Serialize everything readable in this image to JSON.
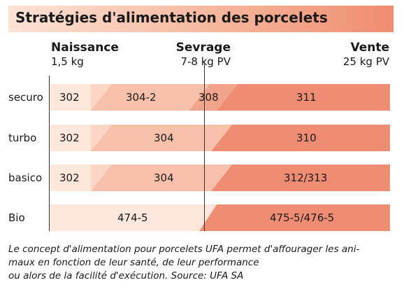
{
  "title": "Stratégies d'alimentation des porcelets",
  "milestones": {
    "birth": {
      "name": "Naissance",
      "weight": "1,5 kg"
    },
    "weaning": {
      "name": "Sevrage",
      "weight": "7-8 kg PV"
    },
    "sale": {
      "name": "Vente",
      "weight": "25 kg PV"
    }
  },
  "rows": [
    {
      "label": "securo",
      "feeds": [
        "302",
        "304-2",
        "308",
        "311"
      ]
    },
    {
      "label": "turbo",
      "feeds": [
        "302",
        "304",
        "310"
      ]
    },
    {
      "label": "basico",
      "feeds": [
        "302",
        "304",
        "312/313"
      ]
    },
    {
      "label": "Bio",
      "feeds": [
        "474-5",
        "475-5/476-5"
      ]
    }
  ],
  "caption": {
    "line1": "Le concept d'alimentation pour porcelets UFA permet d'affourager les ani-",
    "line2": "maux en fonction de leur santé, de leur performance",
    "line3": "ou alors de la facilité d'exécution.",
    "source": "Source: UFA SA"
  },
  "colors": {
    "lightest": "#fde6dc",
    "light": "#f7c0ab",
    "medium": "#f3a48c",
    "dark": "#ef8c74"
  }
}
